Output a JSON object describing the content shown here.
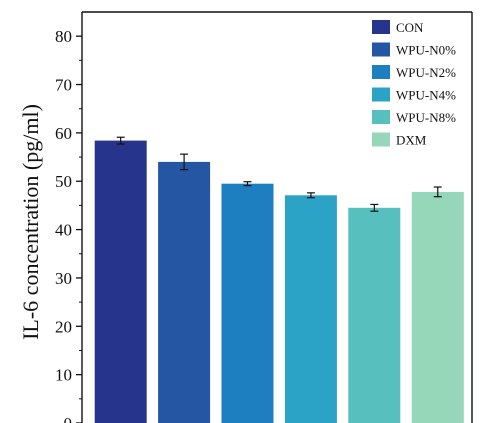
{
  "chart_data": {
    "type": "bar",
    "title": "",
    "xlabel": "",
    "ylabel": "IL-6 concentration (pg/ml)",
    "ylim": [
      0,
      85
    ],
    "yticks": [
      0,
      10,
      20,
      30,
      40,
      50,
      60,
      70,
      80
    ],
    "grid": false,
    "legend_position": "top-right",
    "categories": [
      "CON",
      "WPU-N0%",
      "WPU-N2%",
      "WPU-N4%",
      "WPU-N8%",
      "DXM"
    ],
    "values": [
      58.4,
      54.0,
      49.5,
      47.1,
      44.5,
      47.8
    ],
    "errors": [
      0.7,
      1.6,
      0.4,
      0.5,
      0.7,
      1.0
    ],
    "colors": [
      "#27348b",
      "#2456a4",
      "#1e7fc0",
      "#2aa3c6",
      "#58bfbf",
      "#96d7b9"
    ]
  }
}
